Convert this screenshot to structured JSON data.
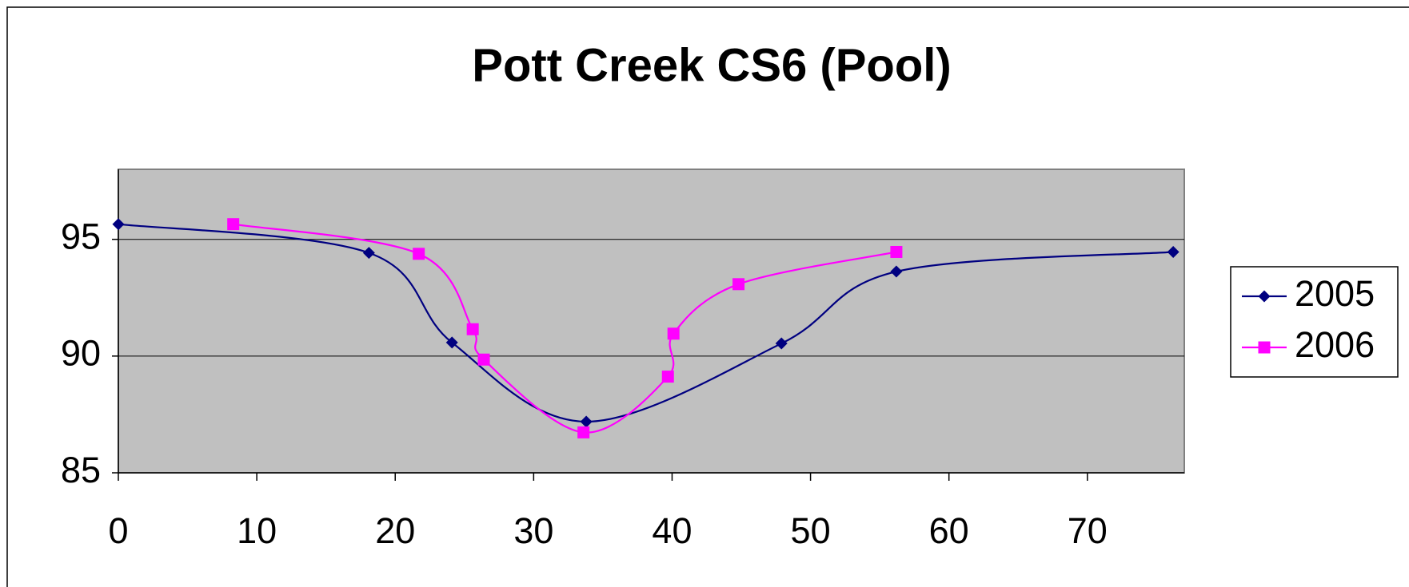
{
  "chart_data": {
    "type": "line",
    "title": "Pott Creek CS6 (Pool)",
    "xlim": [
      0,
      77
    ],
    "xticks": [
      0,
      10,
      20,
      30,
      40,
      50,
      60,
      70
    ],
    "ylim": [
      85,
      98
    ],
    "yticks": [
      85,
      90,
      95
    ],
    "grid": true,
    "smooth": true,
    "legend": "right",
    "plot_background": "#c0c0c0",
    "series": [
      {
        "name": "2005",
        "color": "#000080",
        "marker": "diamond",
        "x": [
          0,
          18.1,
          24.1,
          33.8,
          47.9,
          56.2,
          76.2
        ],
        "values": [
          95.65,
          94.42,
          90.58,
          87.19,
          90.54,
          93.62,
          94.46
        ]
      },
      {
        "name": "2006",
        "color": "#ff00ff",
        "marker": "square",
        "x": [
          8.3,
          21.7,
          25.6,
          26.4,
          33.6,
          39.7,
          40.1,
          44.8,
          56.2
        ],
        "values": [
          95.65,
          94.38,
          91.15,
          89.85,
          86.73,
          89.12,
          90.96,
          93.08,
          94.46
        ]
      }
    ]
  }
}
